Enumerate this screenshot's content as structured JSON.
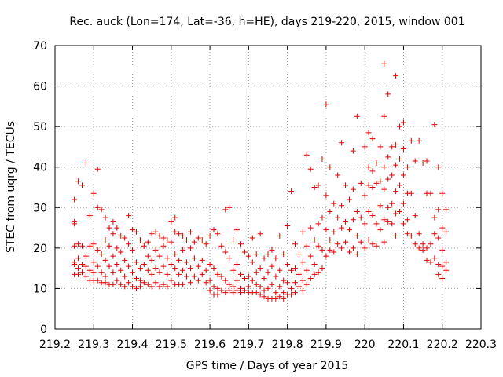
{
  "chart_data": {
    "type": "scatter",
    "title": "Rec. auck (Lon=174, Lat=-36, h=HE), days 219-220, 2015, window 001",
    "xlabel": "GPS time / Days of year 2015",
    "ylabel": "STEC from uqrg / TECUs",
    "xlim": [
      219.2,
      220.3
    ],
    "ylim": [
      0,
      70
    ],
    "xticks": [
      "219.2",
      "219.3",
      "219.4",
      "219.5",
      "219.6",
      "219.7",
      "219.8",
      "219.9",
      "220",
      "220.1",
      "220.2",
      "220.3"
    ],
    "yticks": [
      "0",
      "10",
      "20",
      "30",
      "40",
      "50",
      "60",
      "70"
    ],
    "grid": true,
    "marker": "plus",
    "color": "#e00000",
    "points": [
      [
        219.25,
        32.0
      ],
      [
        219.25,
        26.5
      ],
      [
        219.25,
        26.0
      ],
      [
        219.25,
        20.5
      ],
      [
        219.25,
        16.5
      ],
      [
        219.25,
        16.0
      ],
      [
        219.25,
        13.5
      ],
      [
        219.26,
        36.5
      ],
      [
        219.26,
        21.0
      ],
      [
        219.26,
        17.5
      ],
      [
        219.26,
        15.0
      ],
      [
        219.26,
        13.5
      ],
      [
        219.27,
        35.5
      ],
      [
        219.27,
        20.5
      ],
      [
        219.27,
        16.0
      ],
      [
        219.27,
        14.0
      ],
      [
        219.28,
        41.0
      ],
      [
        219.28,
        18.0
      ],
      [
        219.28,
        15.5
      ],
      [
        219.28,
        13.0
      ],
      [
        219.29,
        28.0
      ],
      [
        219.29,
        20.5
      ],
      [
        219.29,
        14.5
      ],
      [
        219.29,
        12.0
      ],
      [
        219.3,
        33.5
      ],
      [
        219.3,
        21.0
      ],
      [
        219.3,
        16.5
      ],
      [
        219.3,
        14.0
      ],
      [
        219.3,
        12.0
      ],
      [
        219.31,
        39.5
      ],
      [
        219.31,
        30.0
      ],
      [
        219.31,
        19.5
      ],
      [
        219.31,
        15.5
      ],
      [
        219.31,
        12.0
      ],
      [
        219.32,
        29.5
      ],
      [
        219.32,
        18.5
      ],
      [
        219.32,
        14.0
      ],
      [
        219.32,
        11.5
      ],
      [
        219.33,
        27.5
      ],
      [
        219.33,
        22.0
      ],
      [
        219.33,
        17.0
      ],
      [
        219.33,
        13.0
      ],
      [
        219.33,
        11.5
      ],
      [
        219.34,
        25.0
      ],
      [
        219.34,
        20.5
      ],
      [
        219.34,
        15.5
      ],
      [
        219.34,
        11.0
      ],
      [
        219.35,
        26.5
      ],
      [
        219.35,
        23.5
      ],
      [
        219.35,
        18.0
      ],
      [
        219.35,
        14.0
      ],
      [
        219.35,
        11.0
      ],
      [
        219.36,
        25.0
      ],
      [
        219.36,
        20.0
      ],
      [
        219.36,
        16.0
      ],
      [
        219.36,
        12.0
      ],
      [
        219.37,
        23.0
      ],
      [
        219.37,
        19.0
      ],
      [
        219.37,
        14.5
      ],
      [
        219.37,
        11.0
      ],
      [
        219.38,
        22.5
      ],
      [
        219.38,
        17.0
      ],
      [
        219.38,
        13.0
      ],
      [
        219.38,
        10.5
      ],
      [
        219.39,
        28.0
      ],
      [
        219.39,
        21.0
      ],
      [
        219.39,
        15.5
      ],
      [
        219.39,
        11.5
      ],
      [
        219.4,
        24.5
      ],
      [
        219.4,
        19.5
      ],
      [
        219.4,
        14.0
      ],
      [
        219.4,
        10.5
      ],
      [
        219.41,
        24.0
      ],
      [
        219.41,
        16.5
      ],
      [
        219.41,
        12.5
      ],
      [
        219.41,
        10.0
      ],
      [
        219.42,
        22.0
      ],
      [
        219.42,
        15.0
      ],
      [
        219.42,
        12.0
      ],
      [
        219.42,
        10.5
      ],
      [
        219.43,
        20.5
      ],
      [
        219.43,
        16.0
      ],
      [
        219.43,
        11.5
      ],
      [
        219.44,
        21.5
      ],
      [
        219.44,
        18.0
      ],
      [
        219.44,
        14.5
      ],
      [
        219.44,
        11.0
      ],
      [
        219.45,
        23.5
      ],
      [
        219.45,
        17.0
      ],
      [
        219.45,
        13.5
      ],
      [
        219.45,
        10.5
      ],
      [
        219.46,
        24.0
      ],
      [
        219.46,
        19.5
      ],
      [
        219.46,
        15.0
      ],
      [
        219.46,
        11.5
      ],
      [
        219.47,
        23.0
      ],
      [
        219.47,
        18.0
      ],
      [
        219.47,
        14.0
      ],
      [
        219.47,
        10.5
      ],
      [
        219.48,
        22.5
      ],
      [
        219.48,
        20.5
      ],
      [
        219.48,
        15.5
      ],
      [
        219.48,
        11.0
      ],
      [
        219.49,
        22.0
      ],
      [
        219.49,
        17.5
      ],
      [
        219.49,
        13.5
      ],
      [
        219.49,
        10.5
      ],
      [
        219.5,
        26.5
      ],
      [
        219.5,
        21.5
      ],
      [
        219.5,
        16.0
      ],
      [
        219.5,
        12.0
      ],
      [
        219.51,
        27.5
      ],
      [
        219.51,
        24.0
      ],
      [
        219.51,
        18.5
      ],
      [
        219.51,
        15.0
      ],
      [
        219.51,
        11.0
      ],
      [
        219.52,
        23.5
      ],
      [
        219.52,
        17.0
      ],
      [
        219.52,
        13.5
      ],
      [
        219.52,
        11.0
      ],
      [
        219.53,
        23.0
      ],
      [
        219.53,
        19.5
      ],
      [
        219.53,
        14.5
      ],
      [
        219.53,
        11.0
      ],
      [
        219.54,
        22.0
      ],
      [
        219.54,
        16.5
      ],
      [
        219.54,
        13.0
      ],
      [
        219.55,
        24.0
      ],
      [
        219.55,
        20.0
      ],
      [
        219.55,
        15.0
      ],
      [
        219.55,
        11.5
      ],
      [
        219.56,
        21.5
      ],
      [
        219.56,
        17.5
      ],
      [
        219.56,
        13.0
      ],
      [
        219.57,
        22.5
      ],
      [
        219.57,
        15.5
      ],
      [
        219.57,
        12.0
      ],
      [
        219.58,
        22.0
      ],
      [
        219.58,
        17.0
      ],
      [
        219.58,
        13.5
      ],
      [
        219.59,
        21.0
      ],
      [
        219.59,
        14.5
      ],
      [
        219.59,
        11.5
      ],
      [
        219.6,
        23.0
      ],
      [
        219.6,
        16.0
      ],
      [
        219.6,
        12.0
      ],
      [
        219.6,
        9.5
      ],
      [
        219.61,
        24.5
      ],
      [
        219.61,
        15.0
      ],
      [
        219.61,
        10.5
      ],
      [
        219.61,
        8.5
      ],
      [
        219.62,
        23.5
      ],
      [
        219.62,
        13.5
      ],
      [
        219.62,
        10.0
      ],
      [
        219.62,
        8.5
      ],
      [
        219.63,
        20.5
      ],
      [
        219.63,
        13.0
      ],
      [
        219.63,
        9.5
      ],
      [
        219.64,
        29.5
      ],
      [
        219.64,
        19.0
      ],
      [
        219.64,
        12.0
      ],
      [
        219.64,
        9.0
      ],
      [
        219.65,
        30.0
      ],
      [
        219.65,
        17.5
      ],
      [
        219.65,
        11.0
      ],
      [
        219.65,
        9.5
      ],
      [
        219.66,
        22.0
      ],
      [
        219.66,
        14.5
      ],
      [
        219.66,
        10.5
      ],
      [
        219.66,
        9.0
      ],
      [
        219.67,
        24.5
      ],
      [
        219.67,
        16.0
      ],
      [
        219.67,
        12.0
      ],
      [
        219.67,
        9.5
      ],
      [
        219.68,
        21.0
      ],
      [
        219.68,
        13.5
      ],
      [
        219.68,
        10.0
      ],
      [
        219.68,
        9.0
      ],
      [
        219.69,
        19.0
      ],
      [
        219.69,
        12.5
      ],
      [
        219.69,
        9.5
      ],
      [
        219.7,
        18.0
      ],
      [
        219.7,
        13.0
      ],
      [
        219.7,
        10.5
      ],
      [
        219.7,
        9.0
      ],
      [
        219.71,
        22.5
      ],
      [
        219.71,
        16.5
      ],
      [
        219.71,
        12.0
      ],
      [
        219.71,
        9.0
      ],
      [
        219.72,
        18.5
      ],
      [
        219.72,
        14.0
      ],
      [
        219.72,
        11.0
      ],
      [
        219.72,
        9.0
      ],
      [
        219.73,
        23.5
      ],
      [
        219.73,
        15.0
      ],
      [
        219.73,
        10.5
      ],
      [
        219.73,
        8.5
      ],
      [
        219.74,
        17.5
      ],
      [
        219.74,
        12.5
      ],
      [
        219.74,
        9.5
      ],
      [
        219.74,
        8.0
      ],
      [
        219.75,
        18.5
      ],
      [
        219.75,
        14.0
      ],
      [
        219.75,
        10.0
      ],
      [
        219.75,
        7.5
      ],
      [
        219.76,
        19.5
      ],
      [
        219.76,
        15.5
      ],
      [
        219.76,
        11.0
      ],
      [
        219.76,
        7.5
      ],
      [
        219.77,
        17.5
      ],
      [
        219.77,
        13.0
      ],
      [
        219.77,
        9.0
      ],
      [
        219.77,
        7.5
      ],
      [
        219.78,
        23.0
      ],
      [
        219.78,
        14.5
      ],
      [
        219.78,
        10.5
      ],
      [
        219.78,
        8.0
      ],
      [
        219.79,
        18.5
      ],
      [
        219.79,
        12.0
      ],
      [
        219.79,
        9.0
      ],
      [
        219.79,
        7.5
      ],
      [
        219.8,
        25.5
      ],
      [
        219.8,
        16.0
      ],
      [
        219.8,
        11.5
      ],
      [
        219.8,
        8.5
      ],
      [
        219.81,
        34.0
      ],
      [
        219.81,
        14.5
      ],
      [
        219.81,
        10.0
      ],
      [
        219.81,
        8.5
      ],
      [
        219.82,
        21.0
      ],
      [
        219.82,
        15.0
      ],
      [
        219.82,
        11.5
      ],
      [
        219.82,
        9.0
      ],
      [
        219.83,
        18.5
      ],
      [
        219.83,
        13.5
      ],
      [
        219.83,
        10.5
      ],
      [
        219.84,
        24.0
      ],
      [
        219.84,
        16.5
      ],
      [
        219.84,
        12.0
      ],
      [
        219.84,
        9.5
      ],
      [
        219.85,
        43.0
      ],
      [
        219.85,
        20.5
      ],
      [
        219.85,
        14.5
      ],
      [
        219.85,
        11.0
      ],
      [
        219.86,
        39.5
      ],
      [
        219.86,
        25.0
      ],
      [
        219.86,
        18.0
      ],
      [
        219.86,
        12.5
      ],
      [
        219.87,
        35.0
      ],
      [
        219.87,
        22.0
      ],
      [
        219.87,
        16.0
      ],
      [
        219.87,
        13.5
      ],
      [
        219.88,
        35.5
      ],
      [
        219.88,
        26.0
      ],
      [
        219.88,
        20.5
      ],
      [
        219.88,
        14.0
      ],
      [
        219.89,
        42.0
      ],
      [
        219.89,
        27.5
      ],
      [
        219.89,
        19.5
      ],
      [
        219.89,
        15.0
      ],
      [
        219.9,
        55.5
      ],
      [
        219.9,
        33.0
      ],
      [
        219.9,
        24.5
      ],
      [
        219.9,
        18.0
      ],
      [
        219.91,
        40.0
      ],
      [
        219.91,
        29.0
      ],
      [
        219.91,
        22.0
      ],
      [
        219.91,
        19.5
      ],
      [
        219.92,
        31.0
      ],
      [
        219.92,
        24.0
      ],
      [
        219.92,
        19.0
      ],
      [
        219.93,
        38.0
      ],
      [
        219.93,
        27.5
      ],
      [
        219.93,
        21.0
      ],
      [
        219.94,
        46.0
      ],
      [
        219.94,
        30.5
      ],
      [
        219.94,
        25.0
      ],
      [
        219.94,
        20.0
      ],
      [
        219.95,
        35.5
      ],
      [
        219.95,
        26.5
      ],
      [
        219.95,
        21.5
      ],
      [
        219.96,
        32.0
      ],
      [
        219.96,
        24.5
      ],
      [
        219.96,
        19.0
      ],
      [
        219.97,
        44.0
      ],
      [
        219.97,
        34.5
      ],
      [
        219.97,
        27.0
      ],
      [
        219.97,
        20.0
      ],
      [
        219.98,
        52.5
      ],
      [
        219.98,
        29.0
      ],
      [
        219.98,
        23.0
      ],
      [
        219.98,
        18.5
      ],
      [
        219.99,
        36.0
      ],
      [
        219.99,
        27.5
      ],
      [
        219.99,
        21.5
      ],
      [
        220.0,
        45.0
      ],
      [
        220.0,
        33.0
      ],
      [
        220.0,
        26.0
      ],
      [
        220.0,
        20.0
      ],
      [
        220.01,
        48.5
      ],
      [
        220.01,
        40.0
      ],
      [
        220.01,
        35.5
      ],
      [
        220.01,
        29.0
      ],
      [
        220.01,
        22.0
      ],
      [
        220.02,
        47.0
      ],
      [
        220.02,
        39.0
      ],
      [
        220.02,
        35.0
      ],
      [
        220.02,
        28.0
      ],
      [
        220.02,
        21.0
      ],
      [
        220.03,
        41.0
      ],
      [
        220.03,
        36.0
      ],
      [
        220.03,
        26.0
      ],
      [
        220.03,
        20.5
      ],
      [
        220.04,
        45.0
      ],
      [
        220.04,
        36.5
      ],
      [
        220.04,
        30.5
      ],
      [
        220.04,
        24.5
      ],
      [
        220.05,
        65.5
      ],
      [
        220.05,
        52.5
      ],
      [
        220.05,
        40.0
      ],
      [
        220.05,
        34.5
      ],
      [
        220.05,
        27.0
      ],
      [
        220.05,
        21.5
      ],
      [
        220.06,
        58.0
      ],
      [
        220.06,
        42.5
      ],
      [
        220.06,
        37.0
      ],
      [
        220.06,
        30.0
      ],
      [
        220.06,
        26.5
      ],
      [
        220.07,
        45.0
      ],
      [
        220.07,
        38.0
      ],
      [
        220.07,
        31.0
      ],
      [
        220.07,
        26.0
      ],
      [
        220.08,
        62.5
      ],
      [
        220.08,
        45.5
      ],
      [
        220.08,
        40.5
      ],
      [
        220.08,
        34.0
      ],
      [
        220.08,
        28.5
      ],
      [
        220.08,
        23.0
      ],
      [
        220.09,
        50.0
      ],
      [
        220.09,
        42.0
      ],
      [
        220.09,
        35.5
      ],
      [
        220.09,
        29.0
      ],
      [
        220.1,
        51.0
      ],
      [
        220.1,
        44.5
      ],
      [
        220.1,
        38.0
      ],
      [
        220.1,
        31.0
      ],
      [
        220.1,
        26.0
      ],
      [
        220.11,
        40.0
      ],
      [
        220.11,
        33.5
      ],
      [
        220.11,
        27.0
      ],
      [
        220.11,
        23.5
      ],
      [
        220.12,
        46.5
      ],
      [
        220.12,
        33.5
      ],
      [
        220.12,
        23.0
      ],
      [
        220.13,
        41.5
      ],
      [
        220.13,
        28.0
      ],
      [
        220.13,
        21.0
      ],
      [
        220.14,
        46.5
      ],
      [
        220.14,
        23.5
      ],
      [
        220.14,
        20.0
      ],
      [
        220.15,
        41.0
      ],
      [
        220.15,
        21.0
      ],
      [
        220.15,
        19.5
      ],
      [
        220.16,
        41.5
      ],
      [
        220.16,
        33.5
      ],
      [
        220.16,
        20.0
      ],
      [
        220.16,
        17.0
      ],
      [
        220.17,
        33.5
      ],
      [
        220.17,
        21.0
      ],
      [
        220.17,
        16.5
      ],
      [
        220.18,
        50.5
      ],
      [
        220.18,
        27.5
      ],
      [
        220.18,
        23.5
      ],
      [
        220.18,
        17.5
      ],
      [
        220.19,
        40.0
      ],
      [
        220.19,
        29.5
      ],
      [
        220.19,
        22.5
      ],
      [
        220.19,
        16.0
      ],
      [
        220.19,
        13.5
      ],
      [
        220.2,
        33.5
      ],
      [
        220.2,
        25.0
      ],
      [
        220.2,
        19.5
      ],
      [
        220.2,
        15.5
      ],
      [
        220.2,
        12.5
      ],
      [
        220.21,
        29.5
      ],
      [
        220.21,
        24.0
      ],
      [
        220.21,
        16.5
      ],
      [
        220.21,
        14.5
      ]
    ]
  }
}
